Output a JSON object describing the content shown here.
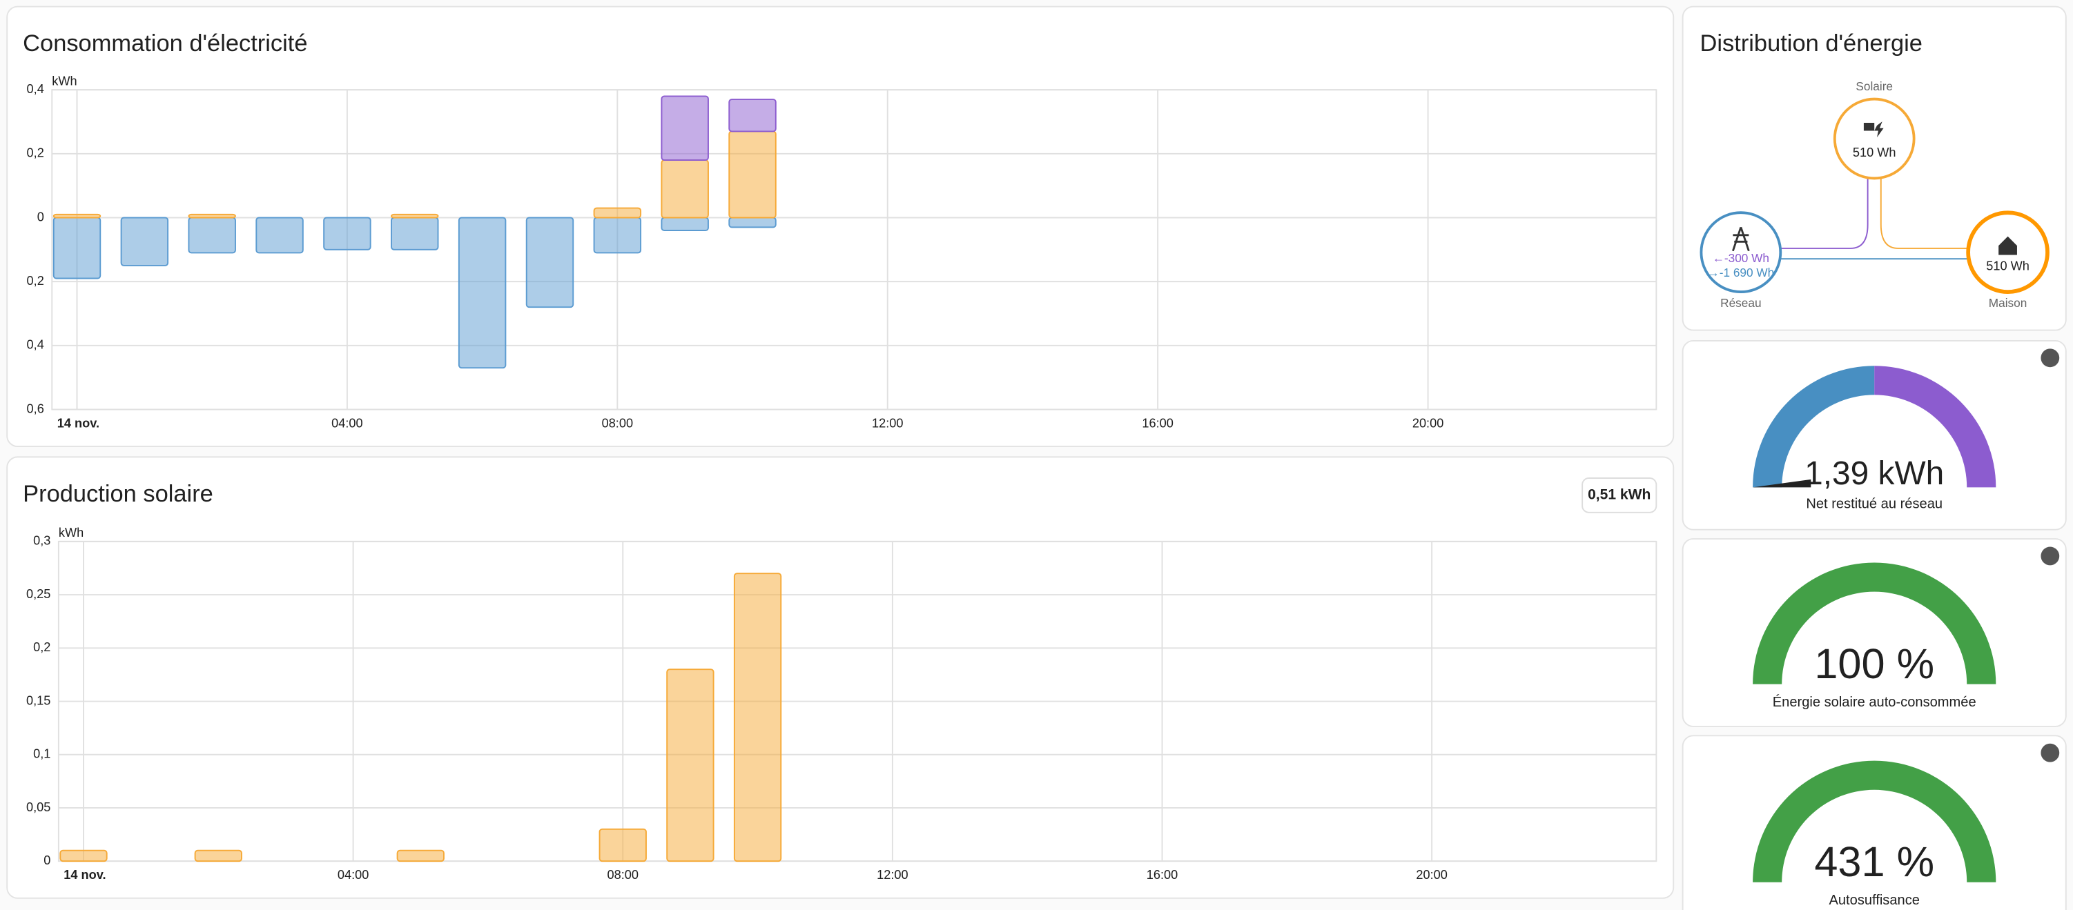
{
  "chart_data": [
    {
      "type": "bar",
      "stacked": true,
      "title": "Consommation d'électricité",
      "y_label": "kWh",
      "x": [
        0,
        1,
        2,
        3,
        4,
        5,
        6,
        7,
        8,
        9,
        10,
        11,
        12,
        13,
        14,
        15,
        16,
        17,
        18,
        19,
        20,
        21,
        22,
        23
      ],
      "series": [
        {
          "color": "#5b9bd1",
          "values": [
            -0.19,
            -0.15,
            -0.11,
            -0.11,
            -0.1,
            -0.1,
            -0.47,
            -0.28,
            -0.11,
            -0.04,
            -0.03,
            null,
            null,
            null,
            null,
            null,
            null,
            null,
            null,
            null,
            null,
            null,
            null,
            null
          ]
        },
        {
          "color": "#f6a936",
          "values": [
            0.01,
            null,
            0.01,
            null,
            null,
            0.01,
            null,
            null,
            0.03,
            0.18,
            0.27,
            null,
            null,
            null,
            null,
            null,
            null,
            null,
            null,
            null,
            null,
            null,
            null,
            null
          ]
        },
        {
          "color": "#8c5ccf",
          "values": [
            null,
            null,
            null,
            null,
            null,
            null,
            null,
            null,
            null,
            0.2,
            0.1,
            null,
            null,
            null,
            null,
            null,
            null,
            null,
            null,
            null,
            null,
            null,
            null,
            null
          ]
        }
      ],
      "xlim": [
        -0.37,
        23.38
      ],
      "xticks": [
        {
          "value": 0,
          "label": "14 nov."
        },
        {
          "value": 4,
          "label": "04:00"
        },
        {
          "value": 8,
          "label": "08:00"
        },
        {
          "value": 12,
          "label": "12:00"
        },
        {
          "value": 16,
          "label": "16:00"
        },
        {
          "value": 20,
          "label": "20:00"
        }
      ],
      "ylim": [
        -0.6,
        0.4
      ],
      "yticks": [
        {
          "value": 0.4,
          "label": "0,4"
        },
        {
          "value": 0.2,
          "label": "0,2"
        },
        0,
        {
          "value": -0.2,
          "label": "0,2"
        },
        {
          "value": -0.4,
          "label": "0,4"
        },
        {
          "value": -0.6,
          "label": "0,6"
        }
      ],
      "grid": true
    },
    {
      "type": "bar",
      "title": "Production solaire",
      "total": "0,51 kWh",
      "y_label": "kWh",
      "x": [
        0,
        1,
        2,
        3,
        4,
        5,
        6,
        7,
        8,
        9,
        10,
        11,
        12,
        13,
        14,
        15,
        16,
        17,
        18,
        19,
        20,
        21,
        22,
        23
      ],
      "series": [
        {
          "color": "#f6a936",
          "values": [
            0.01,
            null,
            0.01,
            null,
            null,
            0.01,
            null,
            null,
            0.03,
            0.18,
            0.27,
            null,
            null,
            null,
            null,
            null,
            null,
            null,
            null,
            null,
            null,
            null,
            null,
            null
          ]
        }
      ],
      "xlim": [
        -0.37,
        23.33
      ],
      "xticks": [
        {
          "value": 0,
          "label": "14 nov."
        },
        {
          "value": 4,
          "label": "04:00"
        },
        {
          "value": 8,
          "label": "08:00"
        },
        {
          "value": 12,
          "label": "12:00"
        },
        {
          "value": 16,
          "label": "16:00"
        },
        {
          "value": 20,
          "label": "20:00"
        }
      ],
      "ylim": [
        0,
        0.3
      ],
      "yticks": [
        0,
        {
          "value": 0.05,
          "label": "0,05"
        },
        {
          "value": 0.1,
          "label": "0,1"
        },
        {
          "value": 0.15,
          "label": "0,15"
        },
        {
          "value": 0.2,
          "label": "0,2"
        },
        {
          "value": 0.25,
          "label": "0,25"
        },
        {
          "value": 0.3,
          "label": "0,3"
        }
      ],
      "grid": true
    }
  ],
  "distribution": {
    "title": "Distribution d'énergie",
    "solar_label": "Solaire",
    "solar_value": "510 Wh",
    "grid_label": "Réseau",
    "grid_return": "←-300 Wh",
    "grid_consumed": "→-1 690 Wh",
    "home_label": "Maison",
    "home_value": "510 Wh"
  },
  "gauges": [
    {
      "value": "1,39 kWh",
      "label": "Net restitué au réseau"
    },
    {
      "value": "100 %",
      "label": "Énergie solaire auto-consommée"
    },
    {
      "value": "431 %",
      "label": "Autosuffisance"
    }
  ]
}
